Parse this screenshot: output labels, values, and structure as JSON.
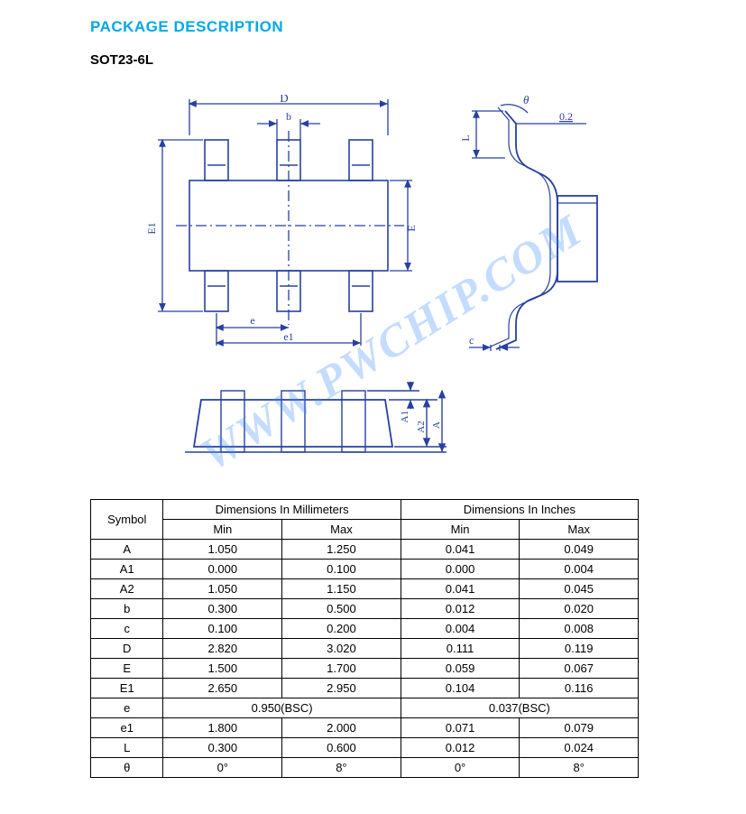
{
  "header": {
    "section_title": "PACKAGE DESCRIPTION",
    "package_name": "SOT23-6L"
  },
  "watermark": "WWW.PWCHIP.COM",
  "diagram": {
    "stroke": "#2840a0",
    "stroke_width": 1.3,
    "label_font": "12px serif",
    "top_view": {
      "labels": {
        "D": "D",
        "b": "b",
        "E1": "E1",
        "E": "E",
        "e": "e",
        "e1": "e1"
      }
    },
    "side_view": {
      "labels": {
        "theta": "θ",
        "gauge": "0.2",
        "L": "L",
        "c": "c"
      }
    },
    "front_view": {
      "labels": {
        "A1": "A1",
        "A2": "A2",
        "A": "A"
      }
    }
  },
  "table": {
    "header": {
      "symbol": "Symbol",
      "mm": "Dimensions In Millimeters",
      "in": "Dimensions In Inches",
      "min": "Min",
      "max": "Max"
    },
    "rows": [
      {
        "sym": "A",
        "mm_min": "1.050",
        "mm_max": "1.250",
        "in_min": "0.041",
        "in_max": "0.049"
      },
      {
        "sym": "A1",
        "mm_min": "0.000",
        "mm_max": "0.100",
        "in_min": "0.000",
        "in_max": "0.004"
      },
      {
        "sym": "A2",
        "mm_min": "1.050",
        "mm_max": "1.150",
        "in_min": "0.041",
        "in_max": "0.045"
      },
      {
        "sym": "b",
        "mm_min": "0.300",
        "mm_max": "0.500",
        "in_min": "0.012",
        "in_max": "0.020"
      },
      {
        "sym": "c",
        "mm_min": "0.100",
        "mm_max": "0.200",
        "in_min": "0.004",
        "in_max": "0.008"
      },
      {
        "sym": "D",
        "mm_min": "2.820",
        "mm_max": "3.020",
        "in_min": "0.111",
        "in_max": "0.119"
      },
      {
        "sym": "E",
        "mm_min": "1.500",
        "mm_max": "1.700",
        "in_min": "0.059",
        "in_max": "0.067"
      },
      {
        "sym": "E1",
        "mm_min": "2.650",
        "mm_max": "2.950",
        "in_min": "0.104",
        "in_max": "0.116"
      },
      {
        "sym": "e",
        "mm_span": "0.950(BSC)",
        "in_span": "0.037(BSC)"
      },
      {
        "sym": "e1",
        "mm_min": "1.800",
        "mm_max": "2.000",
        "in_min": "0.071",
        "in_max": "0.079"
      },
      {
        "sym": "L",
        "mm_min": "0.300",
        "mm_max": "0.600",
        "in_min": "0.012",
        "in_max": "0.024"
      },
      {
        "sym": "θ",
        "mm_min": "0°",
        "mm_max": "8°",
        "in_min": "0°",
        "in_max": "8°"
      }
    ]
  }
}
